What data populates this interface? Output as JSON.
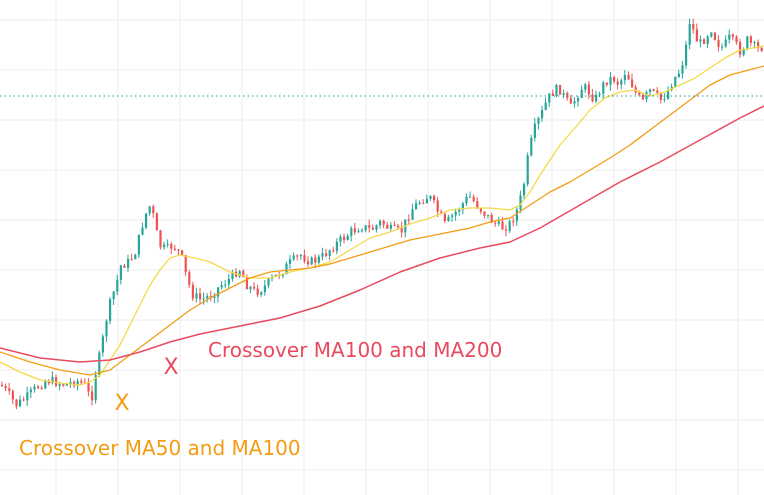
{
  "chart_data": {
    "type": "candlestick",
    "grid": true,
    "colors": {
      "up": "#26a69a",
      "down": "#ef5350",
      "ma50": "#f5d94a",
      "ma100": "#f39c12",
      "ma200": "#e84a5f",
      "price_line": "#26a69a",
      "grid": "#ececec"
    },
    "series": [
      {
        "name": "MA50",
        "x": [
          0,
          20,
          40,
          60,
          80,
          90,
          100,
          110,
          120,
          130,
          140,
          150,
          160,
          170,
          180,
          195,
          210,
          230,
          250,
          270,
          290,
          310,
          330,
          350,
          370,
          390,
          410,
          430,
          450,
          470,
          490,
          510,
          520,
          530,
          540,
          550,
          560,
          575,
          590,
          605,
          620,
          635,
          650,
          665,
          680,
          695,
          710,
          725,
          740,
          764
        ],
        "y": [
          362,
          372,
          380,
          383,
          385,
          382,
          375,
          360,
          345,
          325,
          305,
          285,
          270,
          258,
          255,
          258,
          262,
          272,
          278,
          278,
          272,
          268,
          262,
          250,
          238,
          232,
          224,
          218,
          210,
          208,
          208,
          210,
          205,
          192,
          175,
          160,
          145,
          128,
          110,
          98,
          92,
          90,
          96,
          92,
          85,
          78,
          68,
          58,
          50,
          46
        ]
      },
      {
        "name": "MA100",
        "x": [
          0,
          30,
          60,
          90,
          110,
          130,
          150,
          170,
          190,
          210,
          230,
          250,
          270,
          290,
          310,
          330,
          350,
          370,
          390,
          410,
          430,
          450,
          470,
          490,
          510,
          530,
          550,
          570,
          590,
          610,
          630,
          650,
          670,
          690,
          710,
          730,
          764
        ],
        "y": [
          352,
          362,
          370,
          375,
          370,
          355,
          340,
          325,
          310,
          298,
          288,
          278,
          272,
          270,
          268,
          264,
          258,
          252,
          246,
          240,
          236,
          232,
          228,
          222,
          218,
          205,
          192,
          182,
          170,
          158,
          145,
          130,
          115,
          100,
          85,
          75,
          66
        ]
      },
      {
        "name": "MA200",
        "x": [
          0,
          40,
          80,
          110,
          140,
          170,
          200,
          240,
          280,
          320,
          360,
          400,
          440,
          480,
          510,
          540,
          580,
          620,
          660,
          700,
          740,
          764
        ],
        "y": [
          348,
          358,
          362,
          360,
          352,
          342,
          334,
          326,
          318,
          306,
          290,
          272,
          258,
          248,
          242,
          228,
          205,
          182,
          162,
          140,
          118,
          106
        ]
      }
    ],
    "price_path": {
      "x": [
        0,
        8,
        15,
        25,
        35,
        45,
        55,
        65,
        75,
        85,
        90,
        95,
        100,
        105,
        110,
        115,
        120,
        128,
        135,
        142,
        148,
        152,
        158,
        165,
        172,
        180,
        186,
        192,
        200,
        210,
        220,
        230,
        238,
        246,
        254,
        262,
        270,
        280,
        290,
        300,
        310,
        320,
        330,
        340,
        350,
        360,
        370,
        380,
        390,
        400,
        410,
        420,
        428,
        436,
        444,
        452,
        460,
        468,
        476,
        484,
        492,
        500,
        508,
        516,
        522,
        528,
        534,
        540,
        546,
        552,
        558,
        564,
        570,
        576,
        582,
        588,
        594,
        600,
        606,
        612,
        618,
        624,
        630,
        636,
        642,
        648,
        654,
        660,
        666,
        672,
        678,
        684,
        688,
        692,
        698,
        704,
        710,
        716,
        722,
        728,
        734,
        740,
        746,
        752,
        758,
        764
      ],
      "y": [
        385,
        395,
        405,
        398,
        388,
        380,
        382,
        385,
        380,
        386,
        402,
        370,
        350,
        320,
        300,
        285,
        265,
        262,
        250,
        222,
        205,
        215,
        245,
        250,
        245,
        255,
        280,
        295,
        300,
        295,
        285,
        278,
        268,
        285,
        292,
        288,
        280,
        272,
        262,
        255,
        262,
        258,
        248,
        240,
        232,
        226,
        230,
        222,
        230,
        232,
        210,
        200,
        196,
        210,
        225,
        215,
        206,
        196,
        205,
        214,
        222,
        228,
        225,
        210,
        190,
        150,
        128,
        115,
        100,
        92,
        88,
        98,
        108,
        95,
        86,
        92,
        100,
        88,
        80,
        78,
        84,
        72,
        82,
        96,
        102,
        90,
        95,
        100,
        92,
        80,
        72,
        55,
        20,
        30,
        45,
        38,
        28,
        42,
        48,
        38,
        44,
        52,
        40,
        46,
        50,
        44
      ]
    },
    "dotted_level": {
      "y": 96
    },
    "markers": [
      {
        "label": "X",
        "x": 122,
        "y": 402,
        "color": "#f39c12"
      },
      {
        "label": "X",
        "x": 171,
        "y": 366,
        "color": "#e84a5f"
      }
    ],
    "annotations": [
      {
        "text": "Crossover MA100 and MA200",
        "color": "#e84a5f"
      },
      {
        "text": "Crossover MA50 and MA100",
        "color": "#f39c12"
      }
    ]
  }
}
